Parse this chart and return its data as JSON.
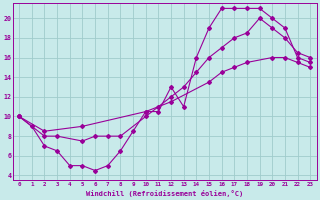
{
  "bg_color": "#c8eaea",
  "grid_color": "#a0cccc",
  "line_color": "#990099",
  "xlabel": "Windchill (Refroidissement éolien,°C)",
  "xlim": [
    -0.5,
    23.5
  ],
  "ylim": [
    3.5,
    21.5
  ],
  "xticks": [
    0,
    1,
    2,
    3,
    4,
    5,
    6,
    7,
    8,
    9,
    10,
    11,
    12,
    13,
    14,
    15,
    16,
    17,
    18,
    19,
    20,
    21,
    22,
    23
  ],
  "yticks": [
    4,
    6,
    8,
    10,
    12,
    14,
    16,
    18,
    20
  ],
  "line1_x": [
    0,
    1,
    2,
    3,
    4,
    5,
    6,
    7,
    8,
    9,
    10,
    11,
    12,
    13,
    14,
    15,
    16,
    17,
    18,
    19,
    20,
    21,
    22,
    23
  ],
  "line1_y": [
    10,
    9,
    7,
    6.5,
    5,
    5,
    4.5,
    5,
    6.5,
    8.5,
    10.5,
    10.5,
    13,
    11,
    16,
    19,
    21,
    21,
    21,
    21,
    20,
    19,
    16,
    15.5
  ],
  "line2_x": [
    0,
    2,
    3,
    5,
    6,
    7,
    8,
    10,
    11,
    12,
    13,
    14,
    15,
    16,
    17,
    18,
    19,
    20,
    21,
    22,
    23
  ],
  "line2_y": [
    10,
    8,
    8,
    7.5,
    8,
    8,
    8,
    10,
    11,
    12,
    13,
    14.5,
    16,
    17,
    18,
    18.5,
    20,
    19,
    18,
    16.5,
    16
  ],
  "line3_x": [
    0,
    2,
    5,
    10,
    12,
    15,
    16,
    17,
    18,
    20,
    21,
    22,
    23
  ],
  "line3_y": [
    10,
    8.5,
    9,
    10.5,
    11.5,
    13.5,
    14.5,
    15,
    15.5,
    16,
    16,
    15.5,
    15
  ]
}
